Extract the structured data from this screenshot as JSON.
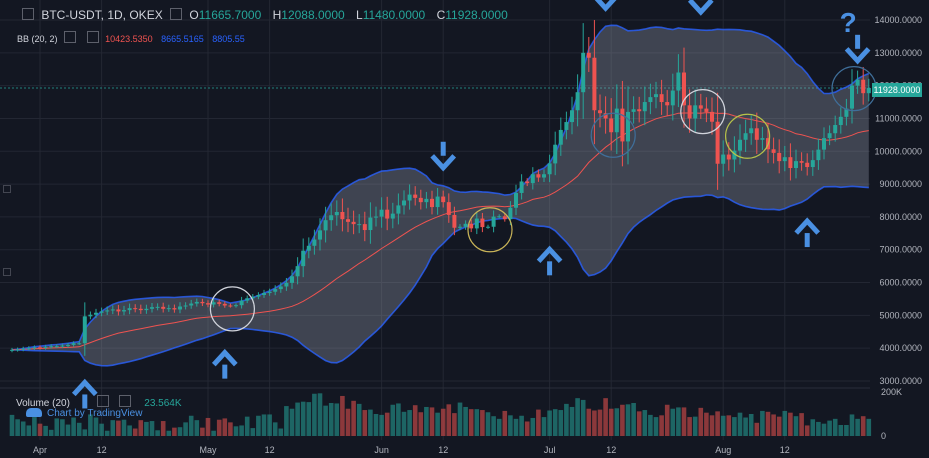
{
  "header": {
    "symbol": "BTC-USDT, 1D, OKEX",
    "o_label": "O",
    "o_value": "11665.7000",
    "h_label": "H",
    "h_value": "12088.0000",
    "l_label": "L",
    "l_value": "11480.0000",
    "c_label": "C",
    "c_value": "11928.0000"
  },
  "indicator": {
    "label": "BB (20, 2)",
    "value1": "10423.5350",
    "value2": "8665.5165",
    "value3": "8805.55"
  },
  "price_tag": "11928.0000",
  "volume_panel": {
    "label": "Volume (20)",
    "value": "23.564K",
    "axis_top": "200K",
    "axis_zero": "0"
  },
  "branding": "Chart by TradingView",
  "colors": {
    "background": "#131722",
    "up": "#26a69a",
    "down": "#ef5350",
    "band": "#2962ff",
    "annotation": "#4a90e2",
    "question": "#4a90e2"
  },
  "chart_data": {
    "type": "candlestick",
    "timeframe": "1D",
    "ylim": [
      2800,
      14500
    ],
    "y_ticks": [
      "14000.0000",
      "13000.0000",
      "12000.0000",
      "11000.0000",
      "10000.0000",
      "9000.0000",
      "8000.0000",
      "7000.0000",
      "6000.0000",
      "5000.0000",
      "4000.0000",
      "3000.0000"
    ],
    "y_tick_values": [
      14000,
      13000,
      12000,
      11000,
      10000,
      9000,
      8000,
      7000,
      6000,
      5000,
      4000,
      3000
    ],
    "x_ticks": [
      "Apr",
      "12",
      "May",
      "12",
      "Jun",
      "12",
      "Jul",
      "12",
      "Aug",
      "12"
    ],
    "x_tick_days": [
      5,
      16,
      35,
      46,
      66,
      77,
      96,
      107,
      127,
      138
    ],
    "close": [
      3950,
      3960,
      3985,
      4000,
      4025,
      4010,
      4040,
      4060,
      4060,
      4080,
      4100,
      4150,
      4150,
      4970,
      5020,
      5080,
      5120,
      5150,
      5180,
      5120,
      5160,
      5220,
      5200,
      5160,
      5200,
      5250,
      5260,
      5200,
      5220,
      5180,
      5270,
      5300,
      5360,
      5410,
      5370,
      5330,
      5400,
      5350,
      5300,
      5290,
      5310,
      5450,
      5520,
      5570,
      5620,
      5680,
      5720,
      5800,
      5880,
      5990,
      6190,
      6500,
      6970,
      7120,
      7310,
      7590,
      7900,
      8050,
      8150,
      7930,
      7850,
      7780,
      7780,
      7600,
      7980,
      8010,
      8220,
      7950,
      8100,
      8350,
      8500,
      8680,
      8580,
      8450,
      8550,
      8300,
      8620,
      8450,
      8060,
      7670,
      7700,
      7790,
      7650,
      7950,
      7690,
      7700,
      8010,
      8020,
      7930,
      8280,
      8730,
      9080,
      9030,
      9300,
      9200,
      9300,
      9630,
      10200,
      10650,
      10890,
      11250,
      11800,
      13000,
      12850,
      11250,
      11160,
      11000,
      10580,
      11300,
      10300,
      11200,
      11280,
      11220,
      11500,
      11650,
      11740,
      11500,
      11400,
      11850,
      12400,
      11400,
      11000,
      11400,
      11300,
      11200,
      10900,
      9620,
      9900,
      9750,
      10020,
      10350,
      10550,
      10700,
      10350,
      10400,
      10060,
      9950,
      9700,
      9820,
      9490,
      9700,
      9650,
      9520,
      9730,
      10050,
      10400,
      10550,
      10800,
      11050,
      11300,
      12000,
      12180,
      11770,
      11928
    ],
    "bb_mid": [
      3950,
      3955,
      3965,
      3974,
      3984,
      3990,
      3997,
      4005,
      4011,
      4018,
      4025,
      4034,
      4043,
      4107,
      4170,
      4233,
      4294,
      4352,
      4409,
      4459,
      4494,
      4528,
      4561,
      4593,
      4627,
      4660,
      4693,
      4721,
      4749,
      4776,
      4811,
      4844,
      4879,
      4912,
      4931,
      4946,
      4961,
      4974,
      4981,
      4987,
      5003,
      5018,
      5034,
      5055,
      5077,
      5102,
      5125,
      5155,
      5190,
      5231,
      5277,
      5342,
      5430,
      5529,
      5634,
      5749,
      5868,
      5996,
      6122,
      6235,
      6347,
      6465,
      6584,
      6687,
      6804,
      6920,
      7036,
      7144,
      7254,
      7362,
      7473,
      7582,
      7686,
      7776,
      7861,
      7932,
      8002,
      8068,
      8126,
      8163,
      8188,
      8222,
      8258,
      8298,
      8317,
      8322,
      8328,
      8325,
      8312,
      8327,
      8354,
      8401,
      8459,
      8534,
      8566,
      8600,
      8664,
      8756,
      8865,
      8974,
      9103,
      9239,
      9450,
      9661,
      9820,
      9976,
      10125,
      10249,
      10387,
      10485,
      10581,
      10682,
      10763,
      10839,
      10917,
      10990,
      11039,
      11077,
      11111,
      11159,
      11166,
      11167,
      11166,
      11161,
      11177,
      11175,
      11154,
      11159,
      11132,
      11079,
      11034,
      10996,
      10969,
      10929,
      10892,
      10852,
      10793,
      10717,
      10657,
      10608,
      10533,
      10501,
      10455,
      10404,
      10366,
      10339,
      10341,
      10362,
      10396,
      10436,
      10491,
      10564,
      10603,
      10631
    ],
    "bb_upper": [
      3950,
      3965,
      3991,
      4016,
      4046,
      4061,
      4079,
      4099,
      4113,
      4131,
      4150,
      4176,
      4196,
      4588,
      4798,
      4975,
      5122,
      5241,
      5337,
      5396,
      5433,
      5466,
      5489,
      5505,
      5520,
      5534,
      5548,
      5549,
      5549,
      5544,
      5559,
      5568,
      5577,
      5585,
      5574,
      5545,
      5518,
      5476,
      5427,
      5374,
      5403,
      5435,
      5480,
      5541,
      5605,
      5677,
      5745,
      5832,
      5935,
      6059,
      6219,
      6450,
      6775,
      7098,
      7426,
      7771,
      8115,
      8432,
      8689,
      8846,
      8946,
      9046,
      9134,
      9157,
      9250,
      9329,
      9395,
      9408,
      9435,
      9458,
      9479,
      9484,
      9454,
      9359,
      9247,
      9042,
      8974,
      8949,
      8889,
      8792,
      8758,
      8751,
      8775,
      8776,
      8762,
      8753,
      8731,
      8709,
      8666,
      8683,
      8757,
      8925,
      9107,
      9319,
      9413,
      9487,
      9645,
      9934,
      10331,
      10720,
      11182,
      11714,
      12494,
      13113,
      13398,
      13634,
      13812,
      13837,
      13834,
      13763,
      13670,
      13679,
      13693,
      13722,
      13766,
      13785,
      13773,
      13735,
      13708,
      13757,
      13732,
      13720,
      13707,
      13694,
      13687,
      13693,
      13719,
      13709,
      13714,
      13709,
      13700,
      13675,
      13658,
      13606,
      13553,
      13478,
      13354,
      13226,
      13062,
      12888,
      12679,
      12558,
      12366,
      12124,
      11920,
      11761,
      11763,
      11799,
      11890,
      11955,
      12050,
      12208,
      12300,
      12370
    ],
    "bb_lower": [
      3950,
      3945,
      3939,
      3932,
      3922,
      3919,
      3915,
      3911,
      3909,
      3905,
      3900,
      3892,
      3890,
      3626,
      3542,
      3491,
      3466,
      3463,
      3481,
      3522,
      3555,
      3590,
      3633,
      3681,
      3734,
      3786,
      3838,
      3893,
      3949,
      4008,
      4063,
      4120,
      4181,
      4239,
      4288,
      4347,
      4404,
      4472,
      4535,
      4600,
      4603,
      4601,
      4588,
      4569,
      4549,
      4527,
      4505,
      4478,
      4445,
      4403,
      4335,
      4234,
      4085,
      3960,
      3842,
      3727,
      3621,
      3560,
      3555,
      3624,
      3748,
      3884,
      4034,
      4217,
      4358,
      4511,
      4677,
      4880,
      5073,
      5266,
      5467,
      5680,
      5918,
      6193,
      6475,
      6822,
      7030,
      7187,
      7363,
      7534,
      7618,
      7693,
      7741,
      7820,
      7872,
      7891,
      7925,
      7941,
      7958,
      7971,
      7951,
      7877,
      7811,
      7749,
      7719,
      7713,
      7683,
      7578,
      7399,
      7228,
      7024,
      6764,
      6406,
      6209,
      6242,
      6318,
      6438,
      6661,
      6940,
      7207,
      7492,
      7685,
      7833,
      7956,
      8068,
      8195,
      8305,
      8419,
      8514,
      8561,
      8600,
      8614,
      8625,
      8628,
      8667,
      8657,
      8589,
      8609,
      8550,
      8449,
      8368,
      8317,
      8280,
      8252,
      8231,
      8226,
      8232,
      8208,
      8252,
      8328,
      8387,
      8444,
      8544,
      8684,
      8812,
      8917,
      8919,
      8925,
      8902,
      8917,
      8932,
      8920,
      8906,
      8892
    ],
    "volume_rel": [
      0.48,
      0.38,
      0.33,
      0.24,
      0.43,
      0.28,
      0.23,
      0.14,
      0.4,
      0.38,
      0.26,
      0.42,
      0.3,
      0.15,
      0.49,
      0.42,
      0.28,
      0.12,
      0.36,
      0.35,
      0.37,
      0.24,
      0.17,
      0.36,
      0.32,
      0.34,
      0.13,
      0.34,
      0.12,
      0.19,
      0.2,
      0.31,
      0.46,
      0.36,
      0.19,
      0.41,
      0.12,
      0.37,
      0.4,
      0.31,
      0.22,
      0.24,
      0.44,
      0.18,
      0.46,
      0.49,
      0.49,
      0.31,
      0.17,
      0.68,
      0.62,
      0.76,
      0.78,
      0.77,
      0.96,
      0.97,
      0.69,
      0.75,
      0.74,
      0.91,
      0.62,
      0.8,
      0.73,
      0.59,
      0.6,
      0.5,
      0.48,
      0.53,
      0.71,
      0.74,
      0.55,
      0.59,
      0.7,
      0.54,
      0.66,
      0.65,
      0.53,
      0.62,
      0.72,
      0.52,
      0.76,
      0.66,
      0.61,
      0.61,
      0.59,
      0.54,
      0.45,
      0.39,
      0.57,
      0.47,
      0.39,
      0.46,
      0.33,
      0.41,
      0.6,
      0.43,
      0.58,
      0.61,
      0.59,
      0.73,
      0.66,
      0.86,
      0.82,
      0.62,
      0.58,
      0.6,
      0.86,
      0.62,
      0.63,
      0.71,
      0.72,
      0.75,
      0.56,
      0.59,
      0.48,
      0.43,
      0.47,
      0.71,
      0.62,
      0.65,
      0.65,
      0.43,
      0.44,
      0.64,
      0.53,
      0.47,
      0.56,
      0.46,
      0.47,
      0.43,
      0.53,
      0.42,
      0.5,
      0.3,
      0.57,
      0.55,
      0.49,
      0.44,
      0.57,
      0.53,
      0.45,
      0.52,
      0.24,
      0.38,
      0.32,
      0.28,
      0.35,
      0.39,
      0.25,
      0.25,
      0.49,
      0.39,
      0.45,
      0.39
    ]
  },
  "annotations": {
    "question_mark": "?",
    "up_arrows": [
      13,
      38,
      96,
      142
    ],
    "down_arrows": [
      77,
      106,
      123,
      151
    ],
    "circles": [
      39,
      85,
      107,
      123,
      131,
      150
    ]
  }
}
